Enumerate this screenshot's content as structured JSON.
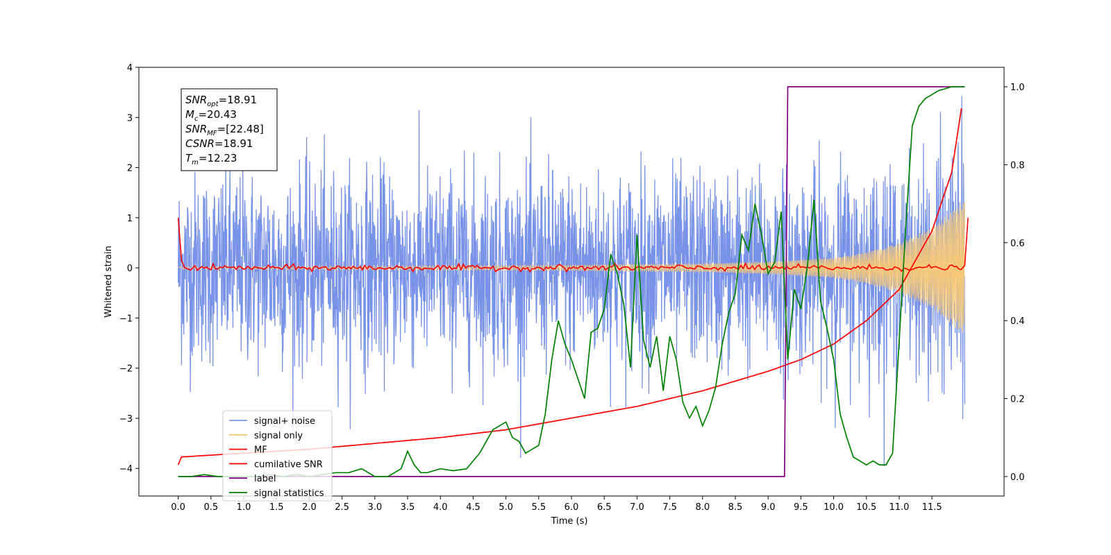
{
  "chart_data": {
    "type": "line",
    "xlabel": "Time (s)",
    "ylabel": "Whitened strain",
    "xlim": [
      -0.6,
      12.6
    ],
    "ylim": [
      -4.55,
      4.0
    ],
    "y2lim": [
      -0.05,
      1.05
    ],
    "x_ticks": [
      "0.0",
      "0.5",
      "1.0",
      "1.5",
      "2.0",
      "2.5",
      "3.0",
      "3.5",
      "4.0",
      "4.5",
      "5.0",
      "5.5",
      "6.0",
      "6.5",
      "7.0",
      "7.5",
      "8.0",
      "8.5",
      "9.0",
      "9.5",
      "10.0",
      "10.5",
      "11.0",
      "11.5"
    ],
    "y_ticks": [
      "4",
      "3",
      "2",
      "1",
      "0",
      "−1",
      "−2",
      "−3",
      "−4"
    ],
    "y2_ticks": [
      "1.0",
      "0.8",
      "0.6",
      "0.4",
      "0.2",
      "0.0"
    ],
    "annotation": {
      "snr_opt": "=18.91",
      "mc": "=20.43",
      "snr_mf": "=[22.48]",
      "csnr": "=18.91",
      "tm": "=12.23"
    },
    "legend_position": "lower-left",
    "series": [
      {
        "name": "signal+ noise",
        "axis": "left",
        "color": "#7893e8",
        "description_values": "noise band approx ±2 (peaks to ±3.6), t from 0 to 12"
      },
      {
        "name": "signal only",
        "axis": "left",
        "color": "#f5c87a",
        "envelope": {
          "x": [
            0,
            6,
            8,
            9,
            10,
            10.5,
            11,
            11.5,
            12
          ],
          "amp": [
            0.02,
            0.05,
            0.08,
            0.12,
            0.2,
            0.3,
            0.5,
            0.8,
            1.35
          ]
        }
      },
      {
        "name": "MF",
        "axis": "left",
        "color": "#ff0000",
        "x": [
          0,
          0.05,
          0.1,
          12,
          12.05
        ],
        "y": [
          1.0,
          0.15,
          0.0,
          0.0,
          1.0
        ]
      },
      {
        "name": "cumilative SNR",
        "axis": "right",
        "color": "#ff0000",
        "x": [
          0,
          0.02,
          1,
          2,
          3,
          4,
          5,
          6,
          7,
          8,
          9,
          9.5,
          10,
          10.5,
          11,
          11.5,
          11.8,
          12.0
        ],
        "y": [
          0.03,
          0.05,
          0.06,
          0.07,
          0.085,
          0.1,
          0.12,
          0.15,
          0.18,
          0.22,
          0.27,
          0.3,
          0.34,
          0.4,
          0.48,
          0.63,
          0.78,
          1.0
        ]
      },
      {
        "name": "label",
        "axis": "right",
        "color": "#800080",
        "x": [
          0,
          9.25,
          9.3,
          12.0
        ],
        "y": [
          0.0,
          0.0,
          1.0,
          1.0
        ]
      },
      {
        "name": "signal statistics",
        "axis": "right",
        "color": "#008000",
        "x": [
          0,
          0.2,
          0.4,
          0.6,
          0.8,
          1.0,
          1.2,
          1.4,
          1.6,
          1.8,
          2.0,
          2.2,
          2.4,
          2.6,
          2.8,
          3.0,
          3.2,
          3.4,
          3.5,
          3.6,
          3.7,
          3.8,
          4.0,
          4.2,
          4.4,
          4.6,
          4.8,
          5.0,
          5.1,
          5.2,
          5.3,
          5.5,
          5.6,
          5.7,
          5.8,
          5.9,
          6.0,
          6.2,
          6.3,
          6.4,
          6.5,
          6.6,
          6.7,
          6.8,
          6.9,
          7.0,
          7.1,
          7.2,
          7.3,
          7.4,
          7.5,
          7.6,
          7.7,
          7.8,
          7.9,
          8.0,
          8.1,
          8.2,
          8.3,
          8.4,
          8.5,
          8.6,
          8.7,
          8.8,
          8.9,
          9.0,
          9.1,
          9.2,
          9.3,
          9.4,
          9.5,
          9.6,
          9.7,
          9.8,
          9.9,
          10.0,
          10.1,
          10.2,
          10.3,
          10.4,
          10.5,
          10.6,
          10.7,
          10.8,
          10.9,
          11.0,
          11.1,
          11.2,
          11.3,
          11.4,
          11.5,
          11.6,
          11.7,
          11.8,
          12.0
        ],
        "y": [
          0.0,
          0.0,
          0.005,
          0.0,
          0.0,
          0.0,
          0.0,
          0.005,
          0.0,
          0.005,
          0.0,
          0.005,
          0.01,
          0.01,
          0.02,
          0.0,
          0.0,
          0.02,
          0.065,
          0.03,
          0.01,
          0.01,
          0.02,
          0.015,
          0.02,
          0.06,
          0.12,
          0.14,
          0.1,
          0.09,
          0.06,
          0.08,
          0.16,
          0.3,
          0.4,
          0.34,
          0.3,
          0.2,
          0.37,
          0.38,
          0.43,
          0.57,
          0.52,
          0.44,
          0.28,
          0.62,
          0.35,
          0.28,
          0.36,
          0.22,
          0.36,
          0.3,
          0.19,
          0.15,
          0.18,
          0.13,
          0.17,
          0.23,
          0.34,
          0.42,
          0.47,
          0.62,
          0.58,
          0.7,
          0.62,
          0.52,
          0.55,
          0.68,
          0.3,
          0.48,
          0.43,
          0.54,
          0.71,
          0.45,
          0.38,
          0.3,
          0.16,
          0.1,
          0.05,
          0.04,
          0.03,
          0.04,
          0.03,
          0.03,
          0.06,
          0.35,
          0.64,
          0.9,
          0.95,
          0.97,
          0.98,
          0.99,
          0.995,
          1.0,
          1.0
        ]
      }
    ]
  }
}
